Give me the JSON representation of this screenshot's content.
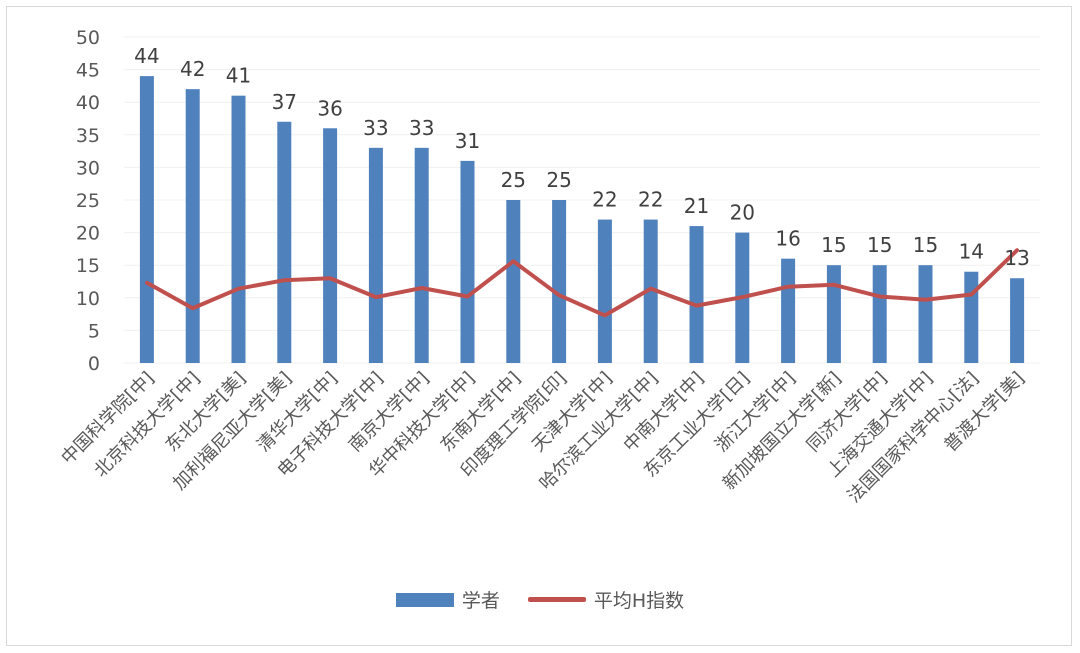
{
  "chart_data": {
    "type": "bar",
    "categories": [
      "中国科学院[中]",
      "北京科技大学[中]",
      "东北大学[美]",
      "加利福尼亚大学[美]",
      "清华大学[中]",
      "电子科技大学[中]",
      "南京大学[中]",
      "华中科技大学[中]",
      "东南大学[中]",
      "印度理工学院[印]",
      "天津大学[中]",
      "哈尔滨工业大学[中]",
      "中南大学[中]",
      "东京工业大学[日]",
      "浙江大学[中]",
      "新加坡国立大学[新]",
      "同济大学[中]",
      "上海交通大学[中]",
      "法国国家科学中心[法]",
      "普渡大学[美]"
    ],
    "series": [
      {
        "name": "学者",
        "type": "bar",
        "values": [
          44,
          42,
          41,
          37,
          36,
          33,
          33,
          31,
          25,
          25,
          22,
          22,
          21,
          20,
          16,
          15,
          15,
          15,
          14,
          13
        ],
        "color": "#4f81bd"
      },
      {
        "name": "平均H指数",
        "type": "line",
        "values": [
          12.3,
          8.4,
          11.4,
          12.7,
          13.0,
          10.1,
          11.5,
          10.2,
          15.6,
          10.4,
          7.3,
          11.4,
          8.8,
          10.1,
          11.7,
          12.0,
          10.2,
          9.7,
          10.5,
          17.3
        ],
        "color": "#c0504d"
      }
    ],
    "ylim": [
      0,
      50
    ],
    "yticks": [
      "0",
      "5",
      "10",
      "15",
      "20",
      "25",
      "30",
      "35",
      "40",
      "45",
      "50"
    ],
    "grid": true,
    "legend": "bottom"
  }
}
